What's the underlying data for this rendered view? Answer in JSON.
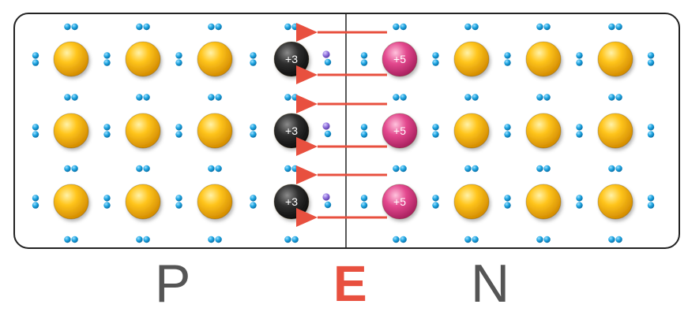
{
  "regions": {
    "p_label": "P",
    "n_label": "N",
    "field_label": "E"
  },
  "lattice": {
    "rows": 3,
    "p_side": {
      "atoms": [
        "si",
        "si",
        "si",
        "acceptor"
      ]
    },
    "n_side": {
      "atoms": [
        "donor",
        "si",
        "si",
        "si"
      ]
    }
  },
  "ions": {
    "acceptor_charge": "+3",
    "donor_charge": "+5"
  },
  "colors": {
    "silicon": "#f4b400",
    "acceptor": "#2b2b2b",
    "donor": "#e3488e",
    "electron": "#1aa3e0",
    "hole": "#8a6ad8",
    "field_arrow": "#e8503f",
    "border": "#222222"
  },
  "icons": {
    "field_arrow": "arrow-left-icon",
    "electron_pair": "electron-pair-icon"
  }
}
